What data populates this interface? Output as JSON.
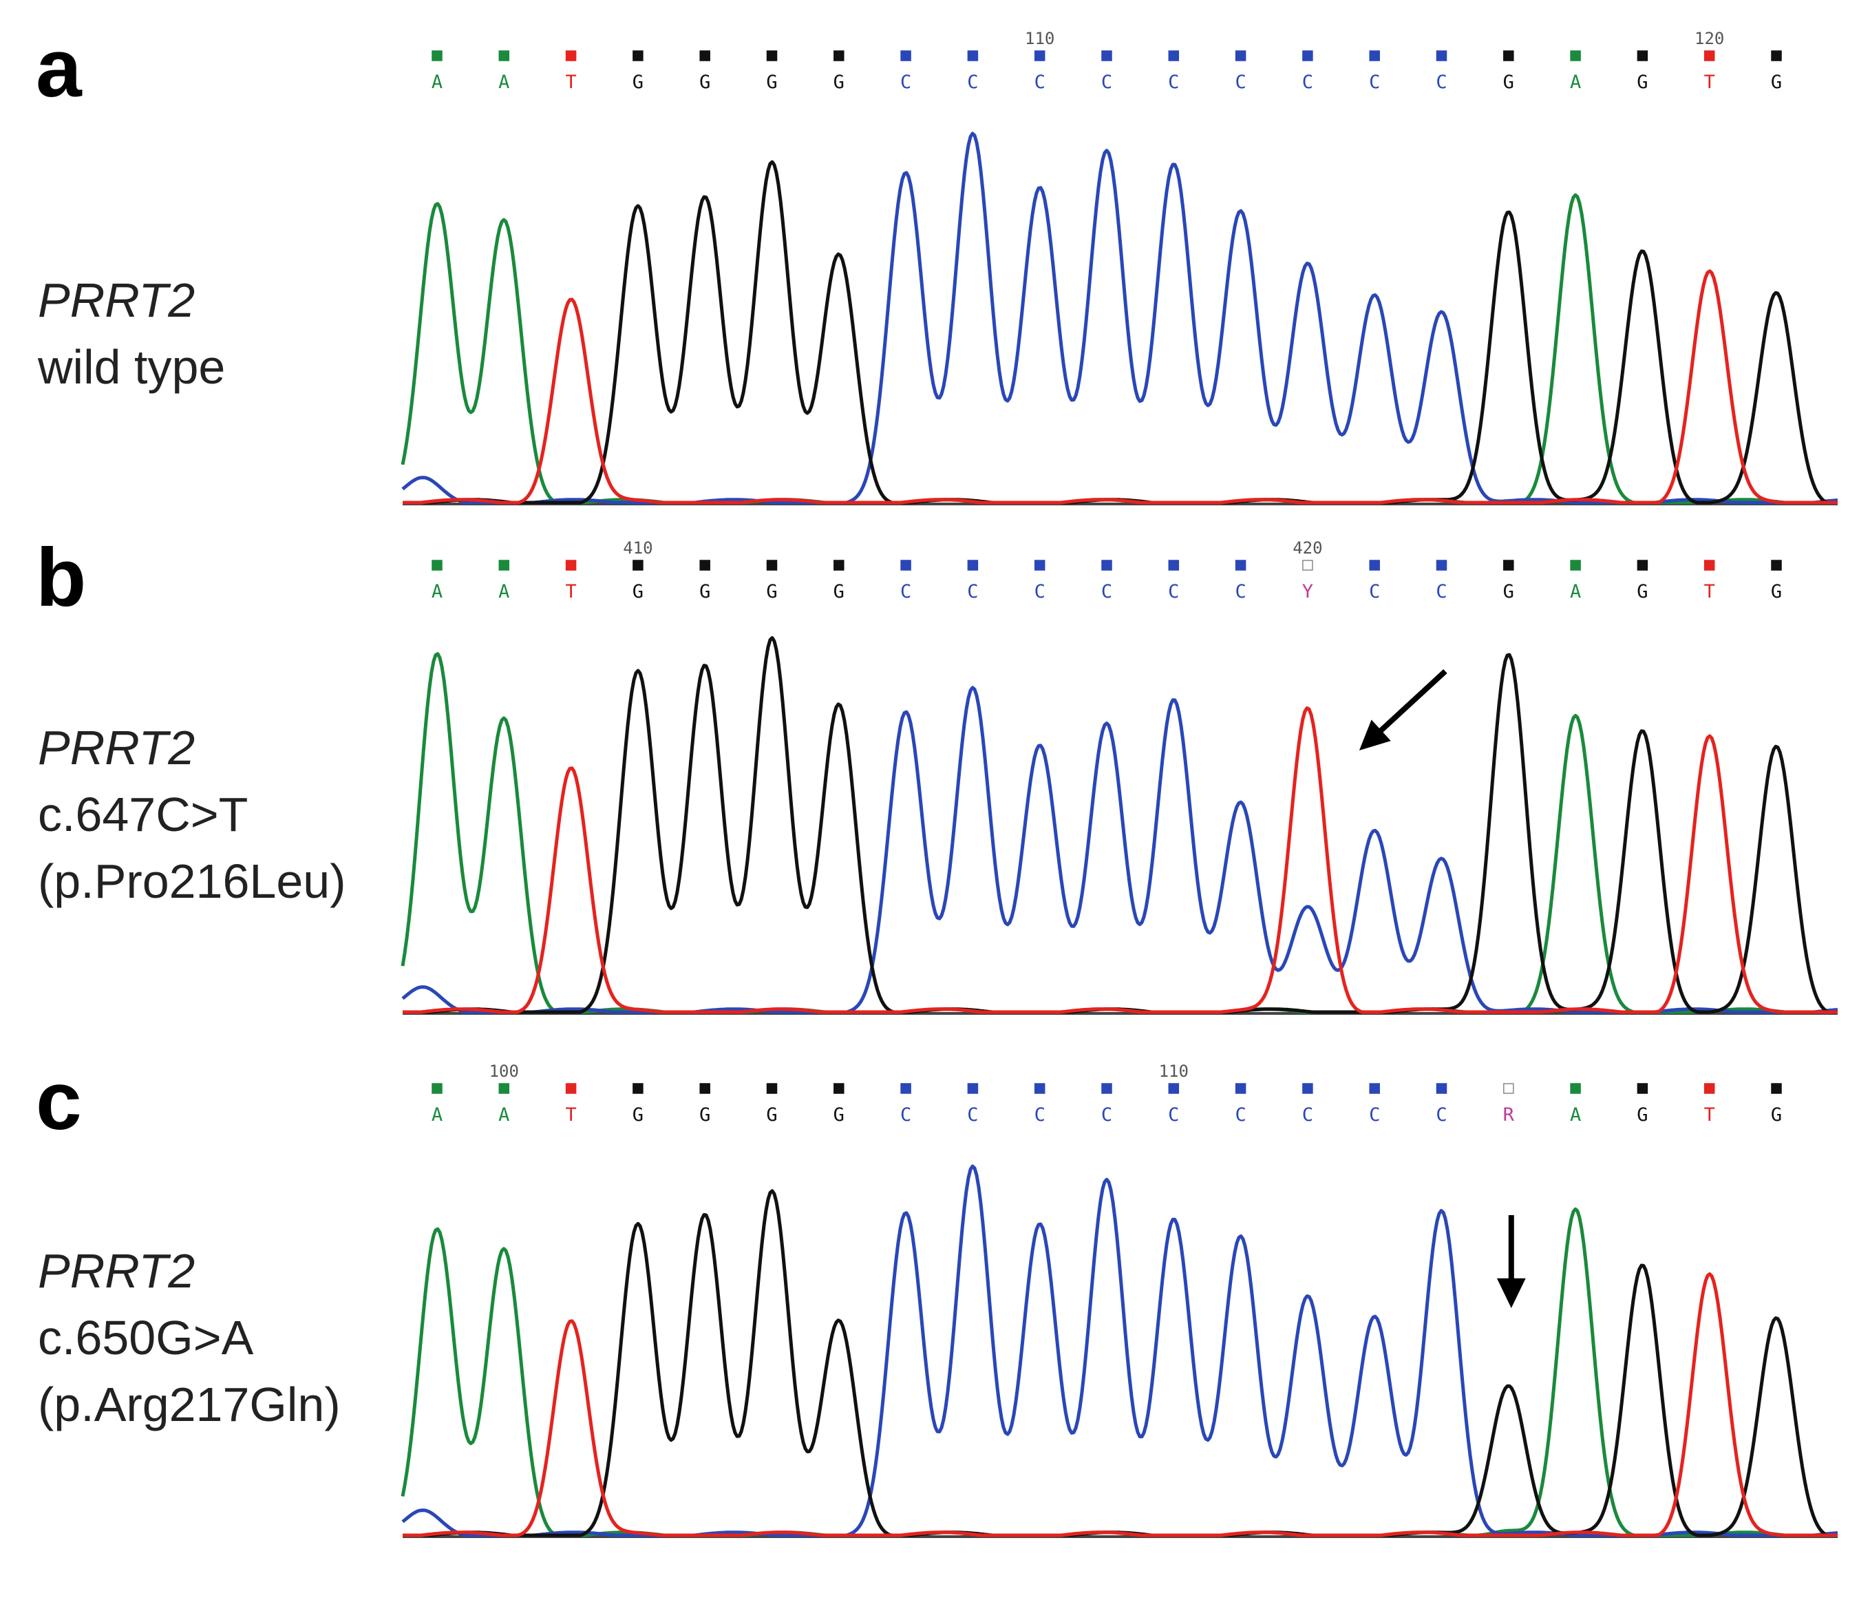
{
  "figure": {
    "panels": [
      {
        "id": "a",
        "letter": "a",
        "label_lines": [
          "PRRT2",
          "wild type"
        ],
        "sequence": [
          "A",
          "A",
          "T",
          "G",
          "G",
          "G",
          "G",
          "C",
          "C",
          "C",
          "C",
          "C",
          "C",
          "C",
          "C",
          "C",
          "G",
          "A",
          "G",
          "T",
          "G"
        ],
        "position_labels": [
          {
            "text": "110",
            "base_index": 9
          },
          {
            "text": "120",
            "base_index": 19
          }
        ],
        "arrow": null,
        "peaks": [
          {
            "base": "A",
            "height": 0.8
          },
          {
            "base": "A",
            "height": 0.76
          },
          {
            "base": "T",
            "height": 0.55
          },
          {
            "base": "G",
            "height": 0.79
          },
          {
            "base": "G",
            "height": 0.83
          },
          {
            "base": "G",
            "height": 0.91
          },
          {
            "base": "G",
            "height": 0.67
          },
          {
            "base": "C",
            "height": 0.88
          },
          {
            "base": "C",
            "height": 1.0
          },
          {
            "base": "C",
            "height": 0.84
          },
          {
            "base": "C",
            "height": 0.95
          },
          {
            "base": "C",
            "height": 0.91
          },
          {
            "base": "C",
            "height": 0.78
          },
          {
            "base": "C",
            "height": 0.65
          },
          {
            "base": "C",
            "height": 0.55
          },
          {
            "base": "C",
            "height": 0.52
          },
          {
            "base": "G",
            "height": 0.79
          },
          {
            "base": "A",
            "height": 0.82
          },
          {
            "base": "G",
            "height": 0.68
          },
          {
            "base": "T",
            "height": 0.62
          },
          {
            "base": "G",
            "height": 0.56
          }
        ]
      },
      {
        "id": "b",
        "letter": "b",
        "label_lines": [
          "PRRT2",
          "c.647C>T",
          "(p.Pro216Leu)"
        ],
        "sequence": [
          "A",
          "A",
          "T",
          "G",
          "G",
          "G",
          "G",
          "C",
          "C",
          "C",
          "C",
          "C",
          "C",
          "Y",
          "C",
          "C",
          "G",
          "A",
          "G",
          "T",
          "G"
        ],
        "position_labels": [
          {
            "text": "410",
            "base_index": 3
          },
          {
            "text": "420",
            "base_index": 13
          }
        ],
        "arrow": {
          "direction": "down-left",
          "base_index": 13
        },
        "peaks": [
          {
            "base": "A",
            "height": 0.96
          },
          {
            "base": "A",
            "height": 0.79
          },
          {
            "base": "T",
            "height": 0.66
          },
          {
            "base": "G",
            "height": 0.91
          },
          {
            "base": "G",
            "height": 0.94
          },
          {
            "base": "G",
            "height": 1.0
          },
          {
            "base": "G",
            "height": 0.83
          },
          {
            "base": "C",
            "height": 0.8
          },
          {
            "base": "C",
            "height": 0.88
          },
          {
            "base": "C",
            "height": 0.71
          },
          {
            "base": "C",
            "height": 0.78
          },
          {
            "base": "C",
            "height": 0.84
          },
          {
            "base": "C",
            "height": 0.56
          },
          {
            "base": "T",
            "height": 0.82,
            "secondary": {
              "base": "C",
              "height": 0.29
            }
          },
          {
            "base": "C",
            "height": 0.48
          },
          {
            "base": "C",
            "height": 0.42
          },
          {
            "base": "G",
            "height": 0.97
          },
          {
            "base": "A",
            "height": 0.79
          },
          {
            "base": "G",
            "height": 0.76
          },
          {
            "base": "T",
            "height": 0.74
          },
          {
            "base": "G",
            "height": 0.71
          }
        ]
      },
      {
        "id": "c",
        "letter": "c",
        "label_lines": [
          "PRRT2",
          "c.650G>A",
          "(p.Arg217Gln)"
        ],
        "sequence": [
          "A",
          "A",
          "T",
          "G",
          "G",
          "G",
          "G",
          "C",
          "C",
          "C",
          "C",
          "C",
          "C",
          "C",
          "C",
          "C",
          "R",
          "A",
          "G",
          "T",
          "G"
        ],
        "position_labels": [
          {
            "text": "100",
            "base_index": 1
          },
          {
            "text": "110",
            "base_index": 11
          }
        ],
        "arrow": {
          "direction": "down",
          "base_index": 16
        },
        "peaks": [
          {
            "base": "A",
            "height": 0.82
          },
          {
            "base": "A",
            "height": 0.77
          },
          {
            "base": "T",
            "height": 0.58
          },
          {
            "base": "G",
            "height": 0.83
          },
          {
            "base": "G",
            "height": 0.87
          },
          {
            "base": "G",
            "height": 0.92
          },
          {
            "base": "G",
            "height": 0.58
          },
          {
            "base": "C",
            "height": 0.86
          },
          {
            "base": "C",
            "height": 1.0
          },
          {
            "base": "C",
            "height": 0.83
          },
          {
            "base": "C",
            "height": 0.96
          },
          {
            "base": "C",
            "height": 0.85
          },
          {
            "base": "C",
            "height": 0.8
          },
          {
            "base": "C",
            "height": 0.65
          },
          {
            "base": "C",
            "height": 0.58
          },
          {
            "base": "C",
            "height": 0.88
          },
          {
            "base": "G",
            "height": 0.41,
            "secondary": {
              "base": "A",
              "height": 0.02
            }
          },
          {
            "base": "A",
            "height": 0.87
          },
          {
            "base": "G",
            "height": 0.73
          },
          {
            "base": "T",
            "height": 0.7
          },
          {
            "base": "G",
            "height": 0.58
          }
        ]
      }
    ],
    "colors": {
      "A": "#1a8a3c",
      "C": "#2a47b8",
      "G": "#111111",
      "T": "#e5231f",
      "Y": "#c03a9a",
      "R": "#c03a9a"
    }
  }
}
